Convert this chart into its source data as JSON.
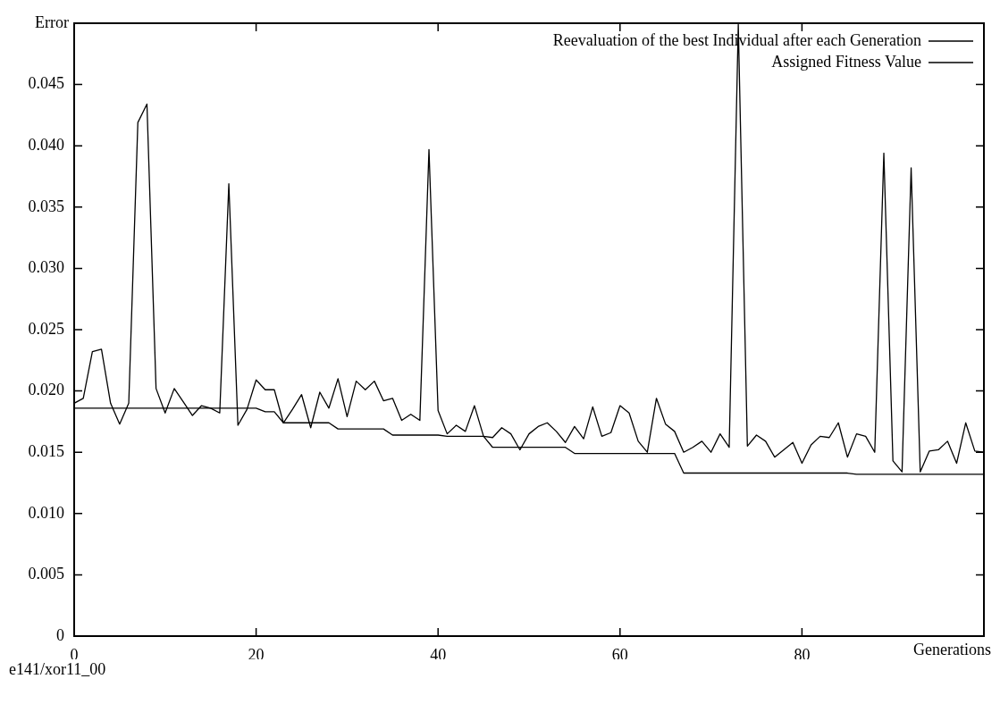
{
  "chart_data": {
    "type": "line",
    "xlabel": "Generations",
    "ylabel": "Error",
    "annotations": [
      "e141/xor11_00"
    ],
    "x": [
      0,
      1,
      2,
      3,
      4,
      5,
      6,
      7,
      8,
      9,
      10,
      11,
      12,
      13,
      14,
      15,
      16,
      17,
      18,
      19,
      20,
      21,
      22,
      23,
      24,
      25,
      26,
      27,
      28,
      29,
      30,
      31,
      32,
      33,
      34,
      35,
      36,
      37,
      38,
      39,
      40,
      41,
      42,
      43,
      44,
      45,
      46,
      47,
      48,
      49,
      50,
      51,
      52,
      53,
      54,
      55,
      56,
      57,
      58,
      59,
      60,
      61,
      62,
      63,
      64,
      65,
      66,
      67,
      68,
      69,
      70,
      71,
      72,
      73,
      74,
      75,
      76,
      77,
      78,
      79,
      80,
      81,
      82,
      83,
      84,
      85,
      86,
      87,
      88,
      89,
      90,
      91,
      92,
      93,
      94,
      95,
      96,
      97,
      98,
      99,
      100
    ],
    "series": [
      {
        "name": "Reevaluation of the best Individual after each Generation",
        "color": "#000000",
        "values": [
          0.019,
          0.0194,
          0.0232,
          0.0234,
          0.019,
          0.0173,
          0.019,
          0.0419,
          0.0434,
          0.0202,
          0.0182,
          0.0202,
          0.0191,
          0.018,
          0.0188,
          0.0186,
          0.0182,
          0.0369,
          0.0172,
          0.0185,
          0.0209,
          0.0201,
          0.0201,
          0.0174,
          0.0185,
          0.0197,
          0.017,
          0.0199,
          0.0186,
          0.021,
          0.0179,
          0.0208,
          0.0201,
          0.0208,
          0.0192,
          0.0194,
          0.0176,
          0.0181,
          0.0176,
          0.0397,
          0.0184,
          0.0165,
          0.0172,
          0.0167,
          0.0188,
          0.0163,
          0.0162,
          0.017,
          0.0165,
          0.0152,
          0.0165,
          0.0171,
          0.0174,
          0.0167,
          0.0158,
          0.0171,
          0.0161,
          0.0187,
          0.0163,
          0.0166,
          0.0188,
          0.0182,
          0.0159,
          0.015,
          0.0194,
          0.0173,
          0.0167,
          0.015,
          0.0154,
          0.0159,
          0.015,
          0.0165,
          0.0154,
          0.0499,
          0.0155,
          0.0164,
          0.0159,
          0.0146,
          0.0152,
          0.0158,
          0.0141,
          0.0156,
          0.0163,
          0.0162,
          0.0174,
          0.0146,
          0.0165,
          0.0163,
          0.015,
          0.0394,
          0.0143,
          0.0134,
          0.0382,
          0.0134,
          0.0151,
          0.0152,
          0.0159,
          0.0141,
          0.0174,
          0.0151,
          0.015
        ]
      },
      {
        "name": "Assigned Fitness Value",
        "color": "#000000",
        "values": [
          0.0186,
          0.0186,
          0.0186,
          0.0186,
          0.0186,
          0.0186,
          0.0186,
          0.0186,
          0.0186,
          0.0186,
          0.0186,
          0.0186,
          0.0186,
          0.0186,
          0.0186,
          0.0186,
          0.0186,
          0.0186,
          0.0186,
          0.0186,
          0.0186,
          0.0183,
          0.0183,
          0.0174,
          0.0174,
          0.0174,
          0.0174,
          0.0174,
          0.0174,
          0.0169,
          0.0169,
          0.0169,
          0.0169,
          0.0169,
          0.0169,
          0.0164,
          0.0164,
          0.0164,
          0.0164,
          0.0164,
          0.0164,
          0.0163,
          0.0163,
          0.0163,
          0.0163,
          0.0163,
          0.0154,
          0.0154,
          0.0154,
          0.0154,
          0.0154,
          0.0154,
          0.0154,
          0.0154,
          0.0154,
          0.0149,
          0.0149,
          0.0149,
          0.0149,
          0.0149,
          0.0149,
          0.0149,
          0.0149,
          0.0149,
          0.0149,
          0.0149,
          0.0149,
          0.0133,
          0.0133,
          0.0133,
          0.0133,
          0.0133,
          0.0133,
          0.0133,
          0.0133,
          0.0133,
          0.0133,
          0.0133,
          0.0133,
          0.0133,
          0.0133,
          0.0133,
          0.0133,
          0.0133,
          0.0133,
          0.0133,
          0.0132,
          0.0132,
          0.0132,
          0.0132,
          0.0132,
          0.0132,
          0.0132,
          0.0132,
          0.0132,
          0.0132,
          0.0132,
          0.0132,
          0.0132,
          0.0132,
          0.0132
        ]
      }
    ],
    "xlim": [
      0,
      100
    ],
    "xticks": [
      0,
      20,
      40,
      60,
      80
    ],
    "ylim": [
      0,
      0.05
    ],
    "yticks": [
      0,
      0.005,
      {
        "value": 0.01,
        "label": "0.010"
      },
      0.015,
      {
        "value": 0.02,
        "label": "0.020"
      },
      0.025,
      {
        "value": 0.03,
        "label": "0.030"
      },
      0.035,
      {
        "value": 0.04,
        "label": "0.040"
      },
      0.045
    ],
    "grid": false,
    "legend": "top right",
    "marker": "none",
    "line_style": "solid"
  }
}
